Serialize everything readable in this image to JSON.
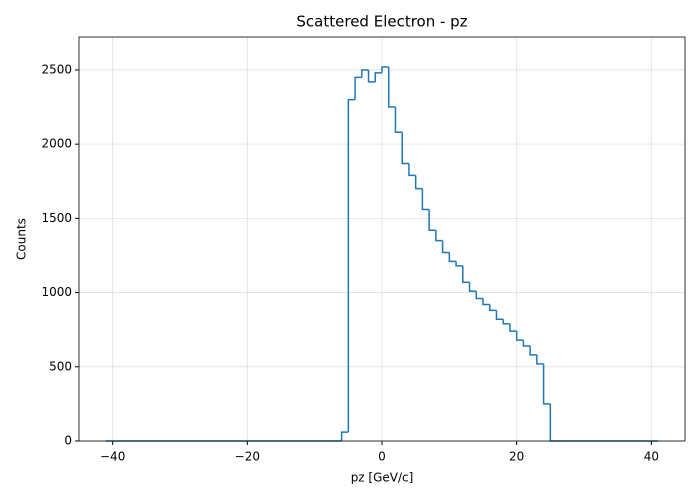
{
  "chart_data": {
    "type": "histogram",
    "title": "Scattered Electron - pz",
    "x_label": "pz [GeV/c]",
    "y_label": "Counts",
    "color": "#1f77b4",
    "bins": [
      -41,
      -40,
      -39,
      -38,
      -37,
      -36,
      -35,
      -34,
      -33,
      -32,
      -31,
      -30,
      -29,
      -28,
      -27,
      -26,
      -25,
      -24,
      -23,
      -22,
      -21,
      -20,
      -19,
      -18,
      -17,
      -16,
      -15,
      -14,
      -13,
      -12,
      -11,
      -10,
      -9,
      -8,
      -7,
      -6,
      -5,
      -4,
      -3,
      -2,
      -1,
      0,
      1,
      2,
      3,
      4,
      5,
      6,
      7,
      8,
      9,
      10,
      11,
      12,
      13,
      14,
      15,
      16,
      17,
      18,
      19,
      20,
      21,
      22,
      23,
      24,
      25,
      26,
      27,
      28,
      29,
      30,
      31,
      32,
      33,
      34,
      35,
      36,
      37,
      38,
      39,
      40,
      41
    ],
    "counts": [
      0,
      0,
      0,
      0,
      0,
      0,
      0,
      0,
      0,
      0,
      0,
      0,
      0,
      0,
      0,
      0,
      0,
      0,
      0,
      0,
      0,
      0,
      0,
      0,
      0,
      0,
      0,
      0,
      0,
      0,
      0,
      0,
      0,
      0,
      0,
      60,
      2300,
      2450,
      2500,
      2420,
      2480,
      2520,
      2250,
      2080,
      1870,
      1790,
      1700,
      1560,
      1420,
      1350,
      1270,
      1210,
      1180,
      1070,
      1010,
      960,
      920,
      880,
      820,
      790,
      740,
      680,
      640,
      580,
      520,
      250,
      0,
      0,
      0,
      0,
      0,
      0,
      0,
      0,
      0,
      0,
      0,
      0,
      0,
      0,
      0,
      0
    ],
    "xlim": [
      -45,
      45
    ],
    "ylim": [
      0,
      2722
    ],
    "xticks": [
      {
        "value": -40,
        "label": "−40"
      },
      {
        "value": -20,
        "label": "−20"
      },
      0,
      20,
      40
    ],
    "yticks": [
      0,
      500,
      1000,
      1500,
      2000,
      2500
    ],
    "grid": true
  }
}
